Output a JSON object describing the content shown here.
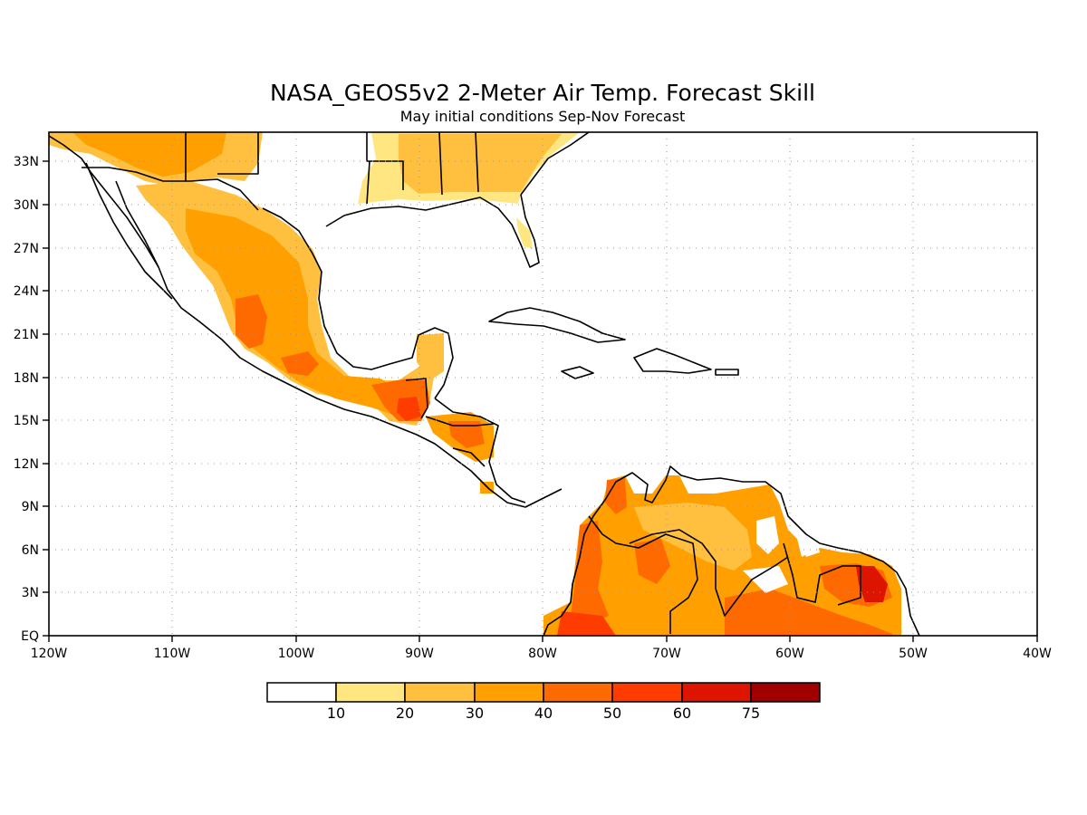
{
  "map": {
    "title": "NASA_GEOS5v2 2-Meter Air Temp. Forecast Skill",
    "subtitle": "May initial conditions  Sep-Nov Forecast",
    "lon_range": [
      -120,
      -40
    ],
    "lat_range": [
      0,
      35
    ],
    "grid": "dotted",
    "x_ticks": [
      "120W",
      "110W",
      "100W",
      "90W",
      "80W",
      "70W",
      "60W",
      "50W",
      "40W"
    ],
    "y_ticks": [
      "EQ",
      "3N",
      "6N",
      "9N",
      "12N",
      "15N",
      "18N",
      "21N",
      "24N",
      "27N",
      "30N",
      "33N"
    ],
    "colorbar": {
      "levels": [
        "10",
        "20",
        "30",
        "40",
        "50",
        "60",
        "75"
      ],
      "colors": [
        "#ffffff",
        "#ffe680",
        "#ffc040",
        "#ffa000",
        "#ff6a00",
        "#ff3c00",
        "#dd1500",
        "#a00000"
      ]
    }
  }
}
